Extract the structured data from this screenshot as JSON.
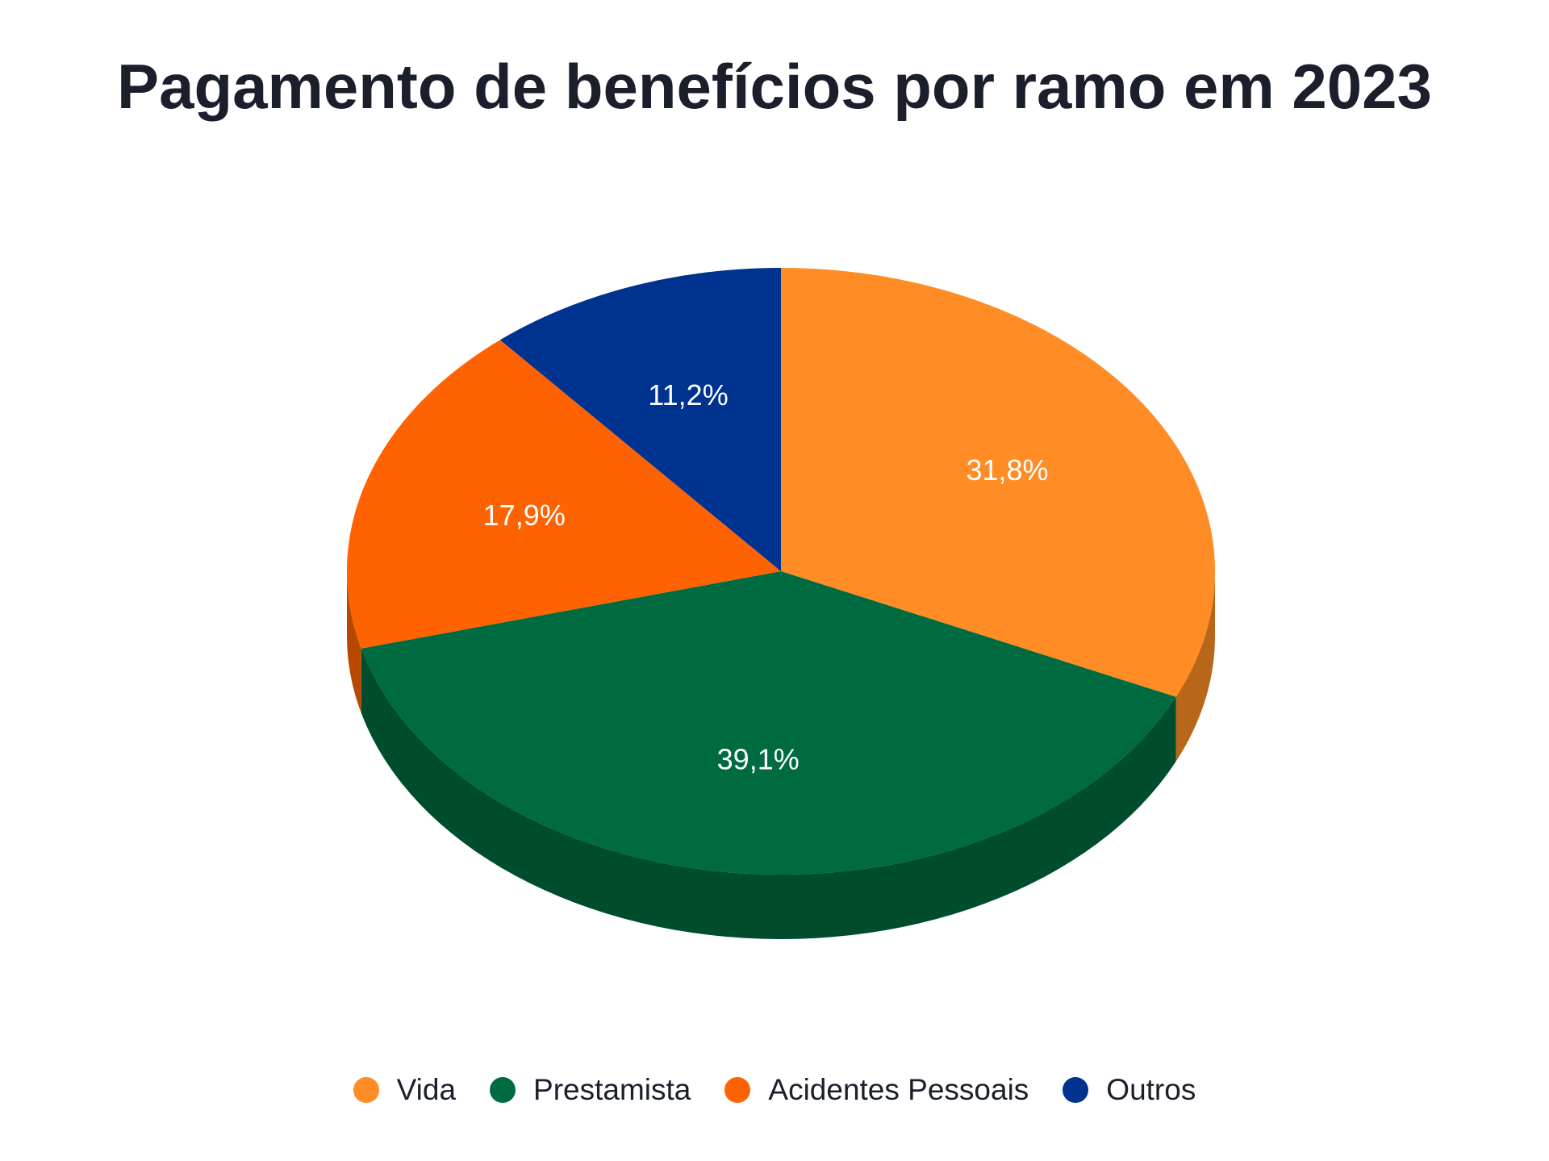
{
  "chart_data": {
    "type": "pie",
    "title": "Pagamento de benefícios por ramo em 2023",
    "categories": [
      "Vida",
      "Prestamista",
      "Acidentes Pessoais",
      "Outros"
    ],
    "values": [
      31.8,
      39.1,
      17.9,
      11.2
    ],
    "value_labels": [
      "31,8%",
      "39,1%",
      "17,9%",
      "11,2%"
    ],
    "colors": [
      "#FF8C24",
      "#006B40",
      "#FF6200",
      "#003290"
    ],
    "side_colors": [
      "#B8661A",
      "#004D2E",
      "#B84700",
      "#002466"
    ],
    "legend_position": "bottom",
    "style": "3d"
  }
}
